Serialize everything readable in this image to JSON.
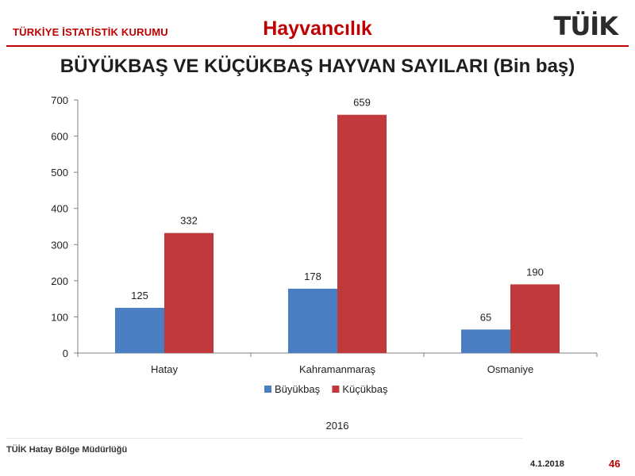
{
  "header": {
    "org": "TÜRKİYE İSTATİSTİK KURUMU",
    "section": "Hayvancılık",
    "logo": "TÜİK"
  },
  "footer": {
    "left": "TÜİK Hatay Bölge Müdürlüğü",
    "date": "4.1.2018",
    "page": "46"
  },
  "chart_data": {
    "type": "bar",
    "title": "BÜYÜKBAŞ VE KÜÇÜKBAŞ HAYVAN SAYILARI (Bin baş)",
    "categories": [
      "Hatay",
      "Kahramanmaraş",
      "Osmaniye"
    ],
    "series": [
      {
        "name": "Büyükbaş",
        "values": [
          125,
          178,
          65
        ],
        "color": "#4a7ec2"
      },
      {
        "name": "Küçükbaş",
        "values": [
          332,
          659,
          190
        ],
        "color": "#c0393b"
      }
    ],
    "ylim": [
      0,
      700
    ],
    "yticks": [
      0,
      100,
      200,
      300,
      400,
      500,
      600,
      700
    ],
    "xlabel": "2016",
    "ylabel": "",
    "grid": false,
    "legend": "bottom",
    "data_labels": true
  }
}
